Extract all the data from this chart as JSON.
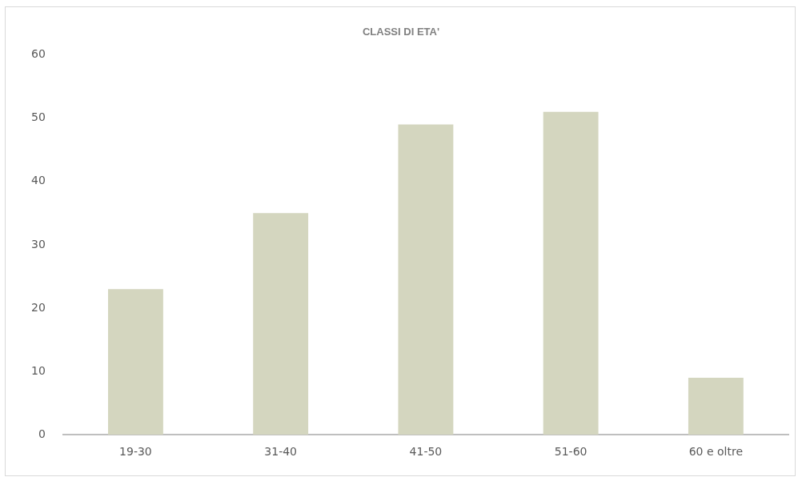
{
  "chart_data": {
    "type": "bar",
    "title": "CLASSI DI ETA'",
    "categories": [
      "19-30",
      "31-40",
      "41-50",
      "51-60",
      "60 e oltre"
    ],
    "values": [
      23,
      35,
      49,
      51,
      9
    ],
    "color": "#d4d6bf",
    "ylim": [
      0,
      60
    ],
    "yticks": [
      0,
      10,
      20,
      30,
      40,
      50,
      60
    ],
    "grid": false,
    "legend": false
  }
}
